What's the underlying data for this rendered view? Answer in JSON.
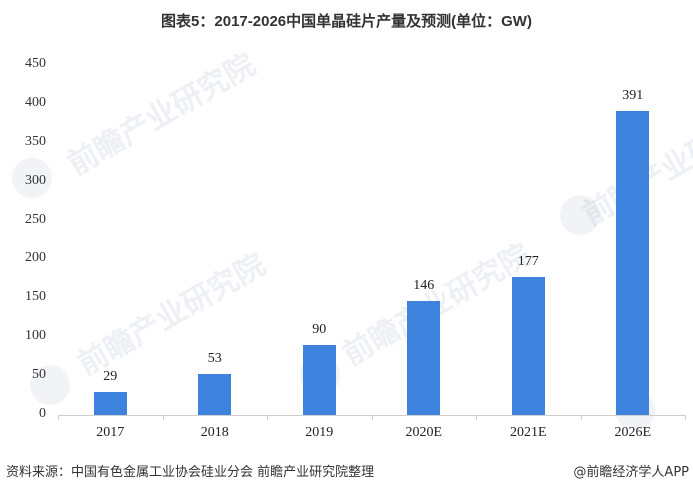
{
  "title": "图表5：2017-2026中国单晶硅片产量及预测(单位：GW)",
  "footer": {
    "source": "资料来源：中国有色金属工业协会硅业分会 前瞻产业研究院整理",
    "credit": "@前瞻经济学人APP"
  },
  "watermark": {
    "text": "前瞻产业研究院"
  },
  "colors": {
    "bar": "#3d82dc",
    "axis": "#cfcfcf"
  },
  "y_ticks": [
    "450",
    "400",
    "350",
    "300",
    "250",
    "200",
    "150",
    "100",
    "50",
    "0"
  ],
  "bars": [
    {
      "category": "2017",
      "value": "29"
    },
    {
      "category": "2018",
      "value": "53"
    },
    {
      "category": "2019",
      "value": "90"
    },
    {
      "category": "2020E",
      "value": "146"
    },
    {
      "category": "2021E",
      "value": "177"
    },
    {
      "category": "2026E",
      "value": "391"
    }
  ],
  "chart_data": {
    "type": "bar",
    "title": "图表5：2017-2026中国单晶硅片产量及预测(单位：GW)",
    "categories": [
      "2017",
      "2018",
      "2019",
      "2020E",
      "2021E",
      "2026E"
    ],
    "values": [
      29,
      53,
      90,
      146,
      177,
      391
    ],
    "xlabel": "",
    "ylabel": "",
    "unit": "GW",
    "ylim": [
      0,
      450
    ],
    "yticks": [
      0,
      50,
      100,
      150,
      200,
      250,
      300,
      350,
      400,
      450
    ],
    "grid": false,
    "legend": null,
    "data_labels": true,
    "source": "资料来源：中国有色金属工业协会硅业分会 前瞻产业研究院整理"
  }
}
